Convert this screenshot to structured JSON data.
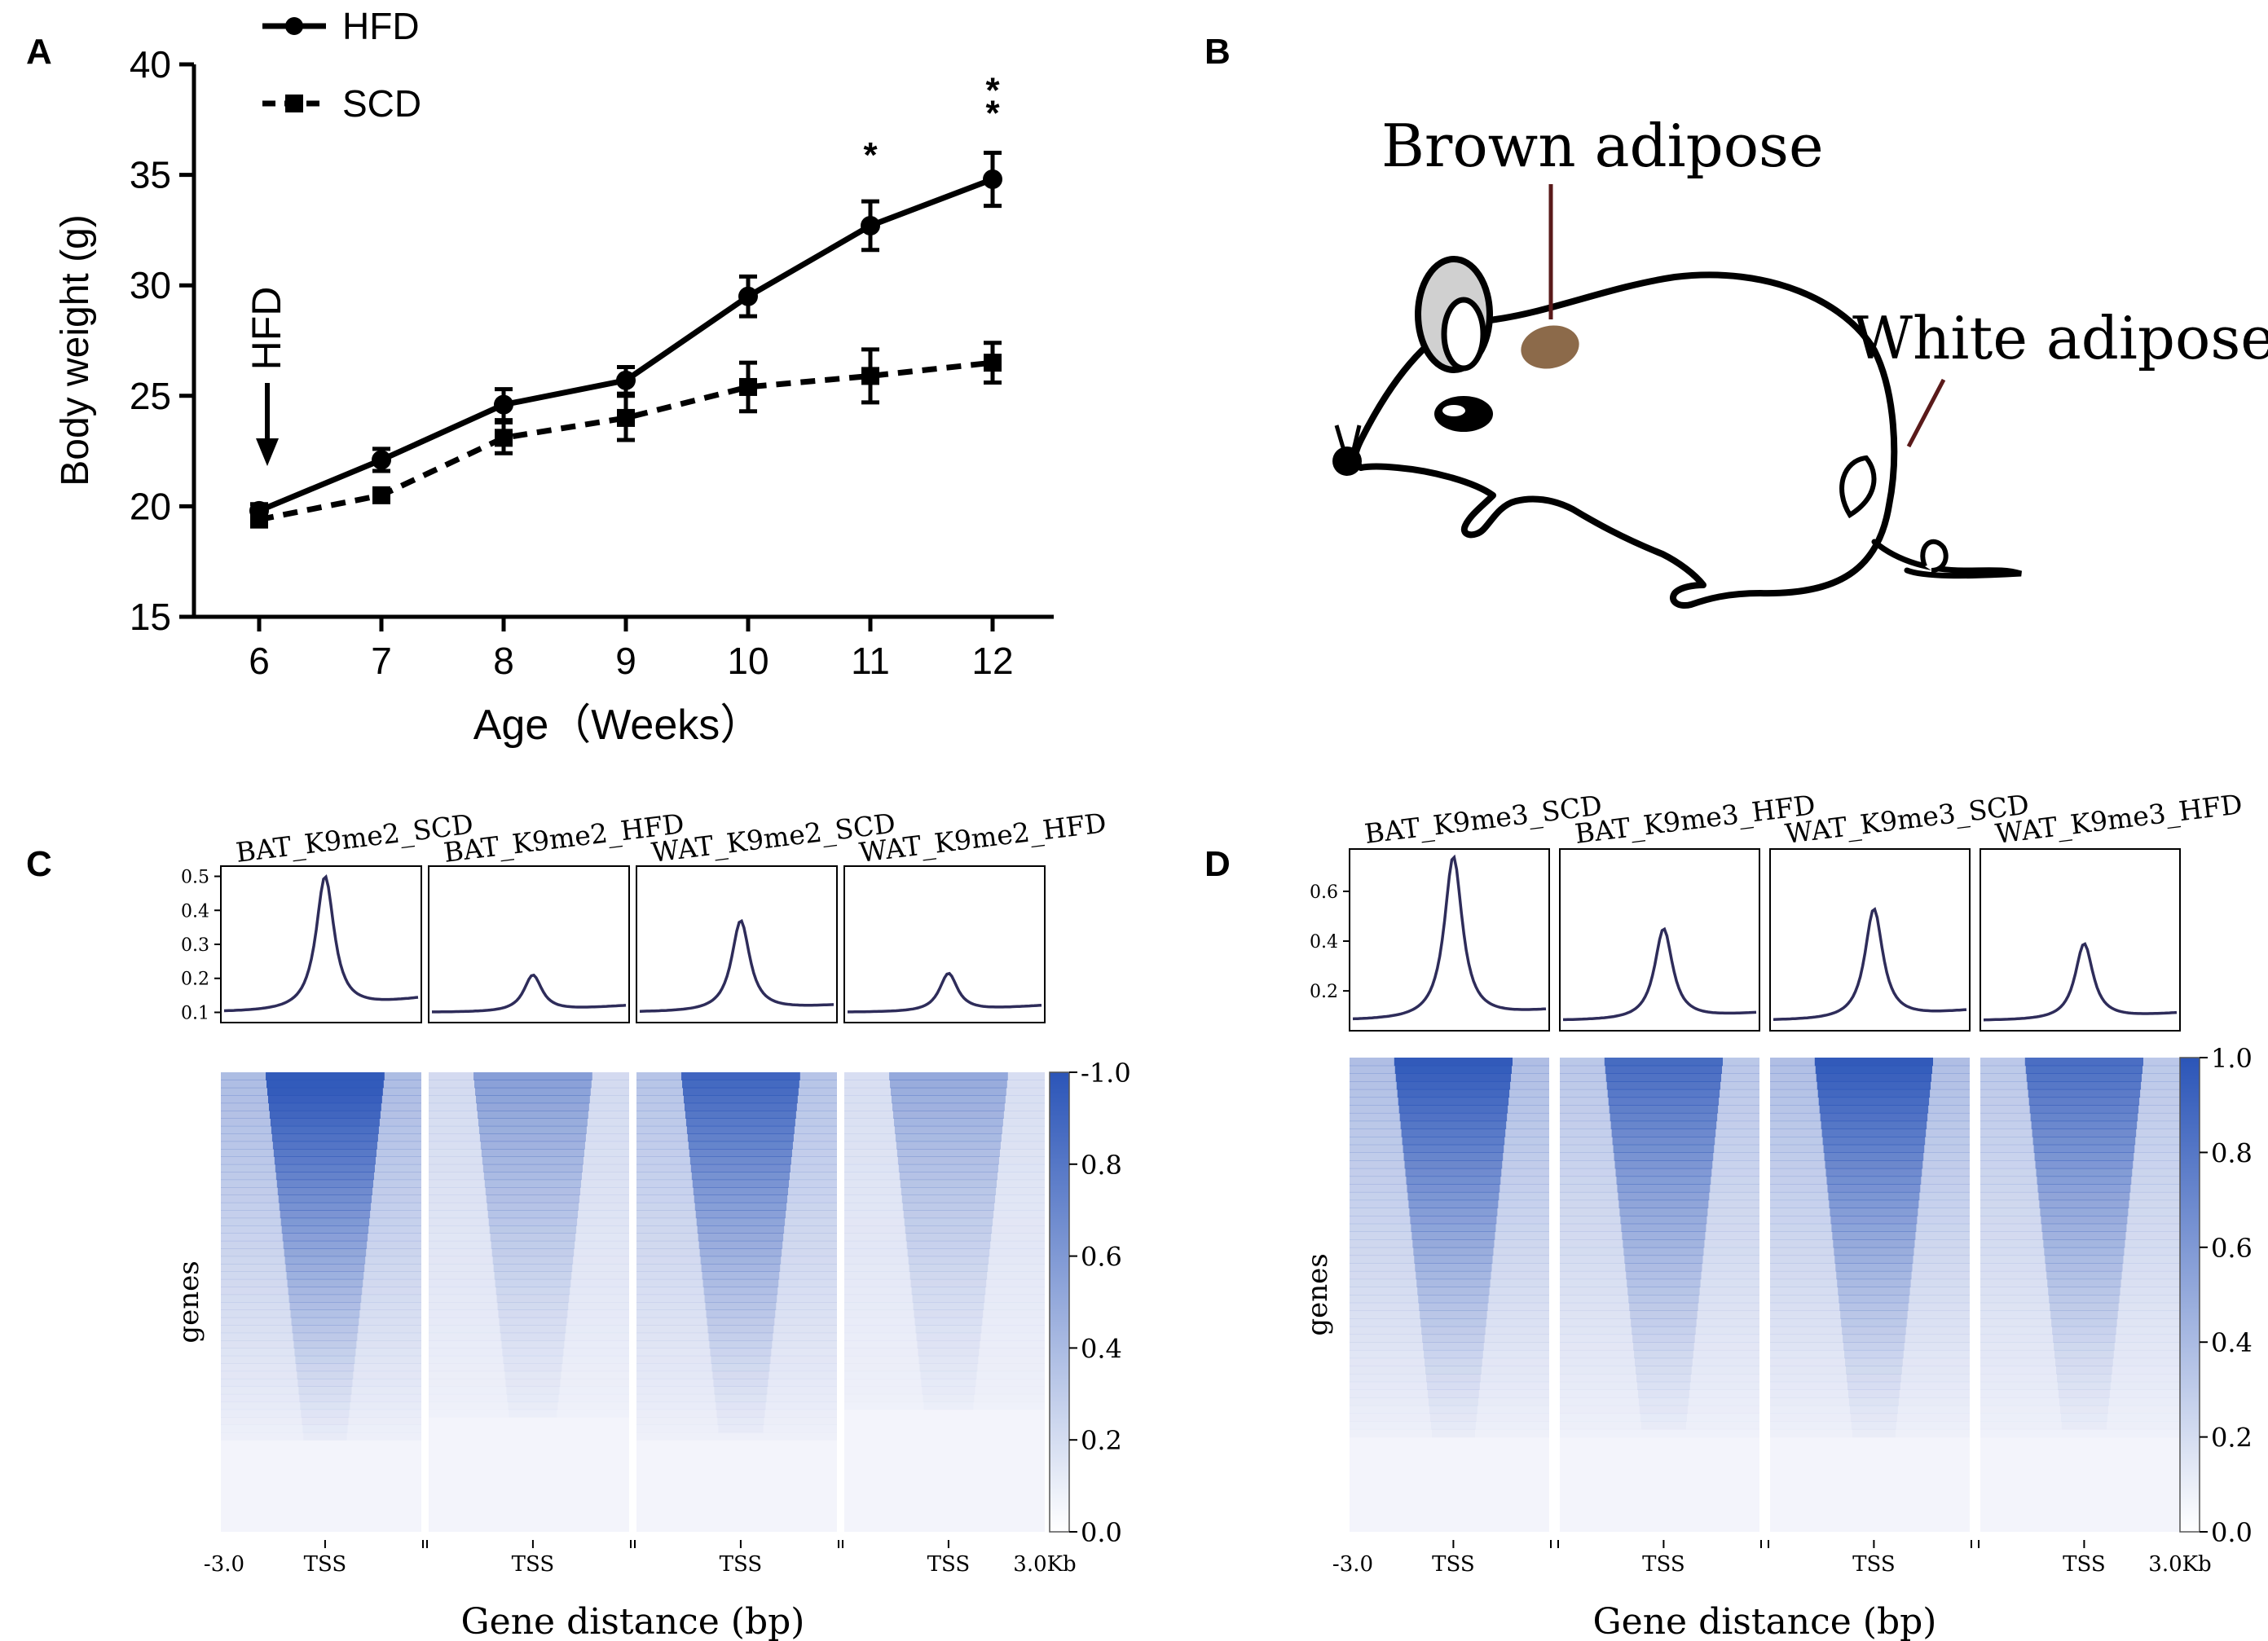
{
  "panels": {
    "A": "A",
    "B": "B",
    "C": "C",
    "D": "D"
  },
  "colors": {
    "heat": "#2b55b8",
    "profile_line": "#2e2c5a",
    "brown_fat": "#8c6a4a",
    "ear_fill": "#d0d0d0",
    "tick_line": "#5a1a1a"
  },
  "mouse": {
    "brown_label": "Brown adipose",
    "white_label": "White adipose"
  },
  "chart_data": [
    {
      "type": "line",
      "panel": "A",
      "xlabel": "Age（Weeks）",
      "ylabel": "Body weight (g)",
      "x": [
        6,
        7,
        8,
        9,
        10,
        11,
        12
      ],
      "xticks": [
        "6",
        "7",
        "8",
        "9",
        "10",
        "11",
        "12"
      ],
      "yticks": [
        "15",
        "20",
        "25",
        "30",
        "35",
        "40"
      ],
      "xlim": [
        5.5,
        12.5
      ],
      "ylim": [
        15,
        40
      ],
      "series": [
        {
          "name": "HFD",
          "marker": "circle",
          "style": "solid",
          "values": [
            19.8,
            22.1,
            24.6,
            25.7,
            29.5,
            32.7,
            34.8
          ],
          "errors": [
            0.3,
            0.5,
            0.7,
            0.6,
            0.9,
            1.1,
            1.2
          ]
        },
        {
          "name": "SCD",
          "marker": "square",
          "style": "dashed",
          "values": [
            19.4,
            20.5,
            23.1,
            24.0,
            25.4,
            25.9,
            26.5
          ],
          "errors": [
            0.3,
            0.3,
            0.7,
            1.0,
            1.1,
            1.2,
            0.9
          ]
        }
      ],
      "significance": [
        {
          "x": 11,
          "label": "*"
        },
        {
          "x": 12,
          "label": "**"
        }
      ],
      "annotation": {
        "text": "HFD",
        "x": 6
      }
    },
    {
      "type": "heatmap",
      "panel": "C",
      "samples": [
        "BAT_K9me2_SCD",
        "BAT_K9me2_HFD",
        "WAT_K9me2_SCD",
        "WAT_K9me2_HFD"
      ],
      "profile_peaks": [
        0.5,
        0.21,
        0.37,
        0.215
      ],
      "profile_baseline": [
        0.1,
        0.1,
        0.1,
        0.1
      ],
      "profile_end": [
        0.14,
        0.12,
        0.12,
        0.12
      ],
      "profile_ylim": [
        0.07,
        0.53
      ],
      "profile_yticks": [
        "0.1",
        "0.2",
        "0.3",
        "0.4",
        "0.5"
      ],
      "intensity": [
        1.0,
        0.45,
        0.85,
        0.38
      ],
      "colorbar_ticks": [
        "-1.0",
        "0.8",
        "0.6",
        "0.4",
        "0.2",
        "0.0"
      ],
      "ylabel": "genes",
      "xlabel": "Gene distance (bp)",
      "x_start": "-3.0",
      "x_mid": "TSS",
      "x_end": "3.0Kb"
    },
    {
      "type": "heatmap",
      "panel": "D",
      "samples": [
        "BAT_K9me3_SCD",
        "BAT_K9me3_HFD",
        "WAT_K9me3_SCD",
        "WAT_K9me3_HFD"
      ],
      "profile_peaks": [
        0.74,
        0.45,
        0.53,
        0.39
      ],
      "profile_baseline": [
        0.08,
        0.08,
        0.08,
        0.08
      ],
      "profile_end": [
        0.12,
        0.11,
        0.12,
        0.11
      ],
      "profile_ylim": [
        0.04,
        0.77
      ],
      "profile_yticks": [
        "0.2",
        "0.4",
        "0.6"
      ],
      "intensity": [
        0.95,
        0.8,
        0.95,
        0.78
      ],
      "colorbar_ticks": [
        "1.0",
        "0.8",
        "0.6",
        "0.4",
        "0.2",
        "0.0"
      ],
      "ylabel": "genes",
      "xlabel": "Gene distance (bp)",
      "x_start": "-3.0",
      "x_mid": "TSS",
      "x_end": "3.0Kb"
    }
  ]
}
